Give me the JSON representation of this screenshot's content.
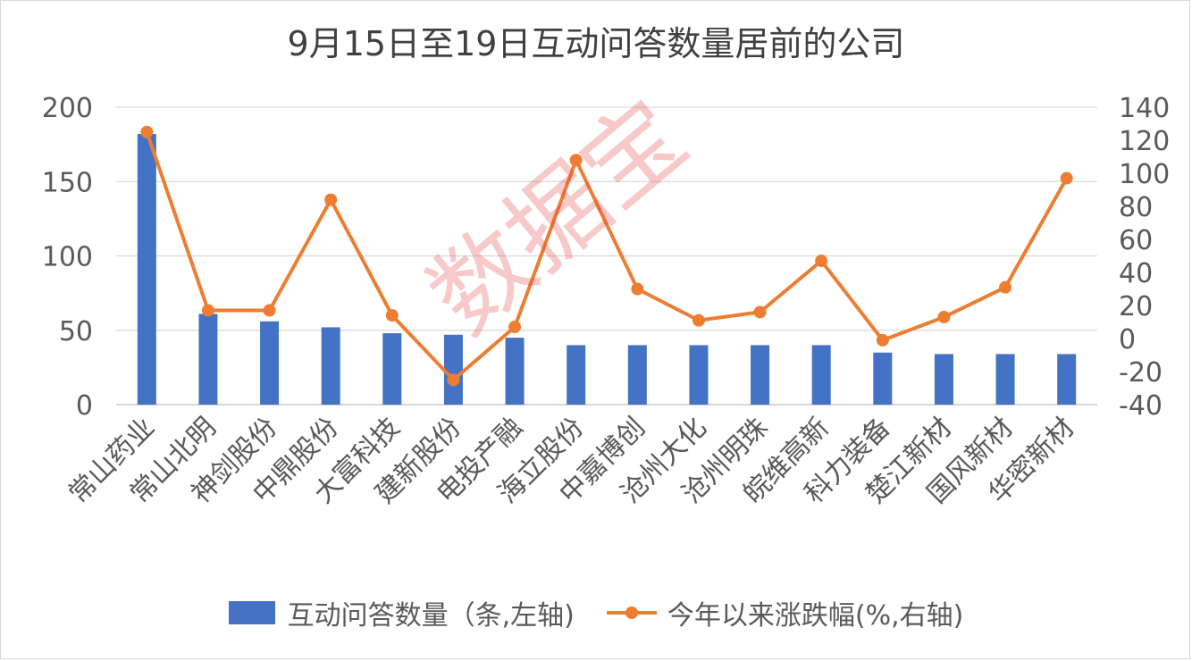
{
  "chart_data": {
    "type": "bar",
    "title": "9月15日至19日互动问答数量居前的公司",
    "categories": [
      "常山药业",
      "常山北明",
      "神剑股份",
      "中鼎股份",
      "大富科技",
      "建新股份",
      "电投产融",
      "海立股份",
      "中嘉博创",
      "沧州大化",
      "沧州明珠",
      "皖维高新",
      "科力装备",
      "楚江新材",
      "国风新材",
      "华密新材"
    ],
    "series": [
      {
        "name": "互动问答数量（条,左轴)",
        "type": "bar",
        "axis": "left",
        "values": [
          182,
          61,
          56,
          52,
          48,
          47,
          45,
          40,
          40,
          40,
          40,
          40,
          35,
          34,
          34,
          34
        ]
      },
      {
        "name": "今年以来涨跌幅(%,右轴)",
        "type": "line",
        "axis": "right",
        "values": [
          125,
          17,
          17,
          84,
          14,
          -25,
          7,
          108,
          30,
          11,
          16,
          47,
          -1,
          13,
          31,
          97
        ]
      }
    ],
    "left_axis": {
      "ylim": [
        0,
        200
      ],
      "ticks": [
        0,
        50,
        100,
        150,
        200
      ]
    },
    "right_axis": {
      "ylim": [
        -40,
        140
      ],
      "ticks": [
        -40,
        -20,
        0,
        20,
        40,
        60,
        80,
        100,
        120,
        140
      ]
    },
    "grid": true,
    "legend_position": "bottom",
    "colors": {
      "bar": "#4472c4",
      "line": "#ed7d31",
      "grid": "#d9d9d9",
      "text": "#595959"
    },
    "watermark": "数据宝"
  }
}
